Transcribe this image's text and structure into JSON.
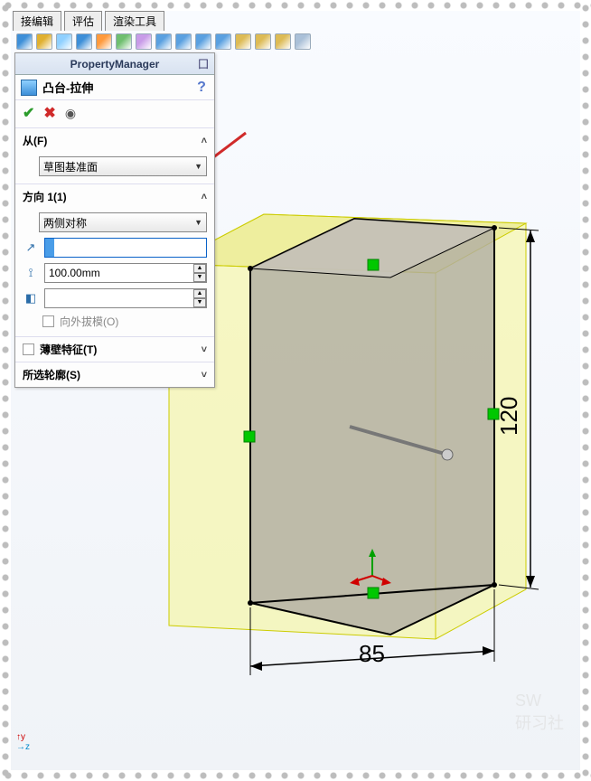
{
  "tabs": {
    "edit": "接编辑",
    "eval": "评估",
    "render": "渲染工具"
  },
  "toolbar_icons": [
    "#3d8fd8",
    "#e0b030",
    "#8fd0ff",
    "#3d8fd8",
    "#ff9a3d",
    "#6fbf6f",
    "#c89be8",
    "#5aa0e0",
    "#5aa0e0",
    "#5aa0e0",
    "#5aa0e0",
    "#ddbb55",
    "#ddbb55",
    "#ddbb55",
    "#aac0d8"
  ],
  "pm": {
    "title": "PropertyManager",
    "feature": "凸台-拉伸",
    "help": "?",
    "from": {
      "label": "从(F)",
      "combo": "草图基准面"
    },
    "dir1": {
      "label": "方向 1(1)",
      "combo": "两侧对称",
      "depth": "100.00mm",
      "draft_out": "向外拔模(O)"
    },
    "thin": "薄壁特征(T)",
    "contour": "所选轮廓(S)"
  },
  "dims": {
    "width": "85",
    "height": "120"
  },
  "colors": {
    "preview_fill": "#f5f594",
    "preview_fill_dark": "#e8e880",
    "face_fill": "#b0ada3",
    "face_fill_top": "#c9c6bb",
    "arrow": "#d02a2a"
  }
}
